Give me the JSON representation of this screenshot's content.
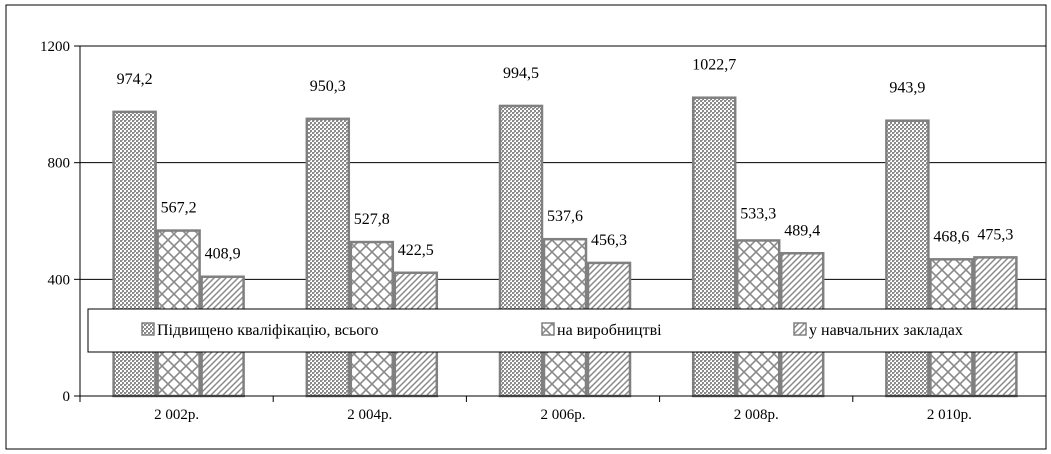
{
  "chart_data": {
    "type": "bar",
    "categories": [
      "2 002р.",
      "2 004р.",
      "2 006р.",
      "2 008р.",
      "2 010р."
    ],
    "series": [
      {
        "name": "Підвищено кваліфікацію, всього",
        "values": [
          974.2,
          950.3,
          994.5,
          1022.7,
          943.9
        ],
        "labels": [
          "974,2",
          "950,3",
          "994,5",
          "1022,7",
          "943,9"
        ],
        "pattern": "crosshatch-dense"
      },
      {
        "name": "на виробництві",
        "values": [
          567.2,
          527.8,
          537.6,
          533.3,
          468.6
        ],
        "labels": [
          "567,2",
          "527,8",
          "537,6",
          "533,3",
          "468,6"
        ],
        "pattern": "diamond-lattice"
      },
      {
        "name": "у навчальних закладах",
        "values": [
          408.9,
          422.5,
          456.3,
          489.4,
          475.3
        ],
        "labels": [
          "408,9",
          "422,5",
          "456,3",
          "489,4",
          "475,3"
        ],
        "pattern": "diagonal-lines"
      }
    ],
    "yticks": [
      "0",
      "400",
      "800",
      "1200"
    ],
    "ylim": [
      0,
      1200
    ],
    "grid": true,
    "legend_position": "bottom, inside plot",
    "colors": {
      "bar_fill": "#ffffff",
      "bar_outline": "#808080",
      "pattern_ink": "#7f7f7f",
      "grid": "#000000"
    }
  }
}
